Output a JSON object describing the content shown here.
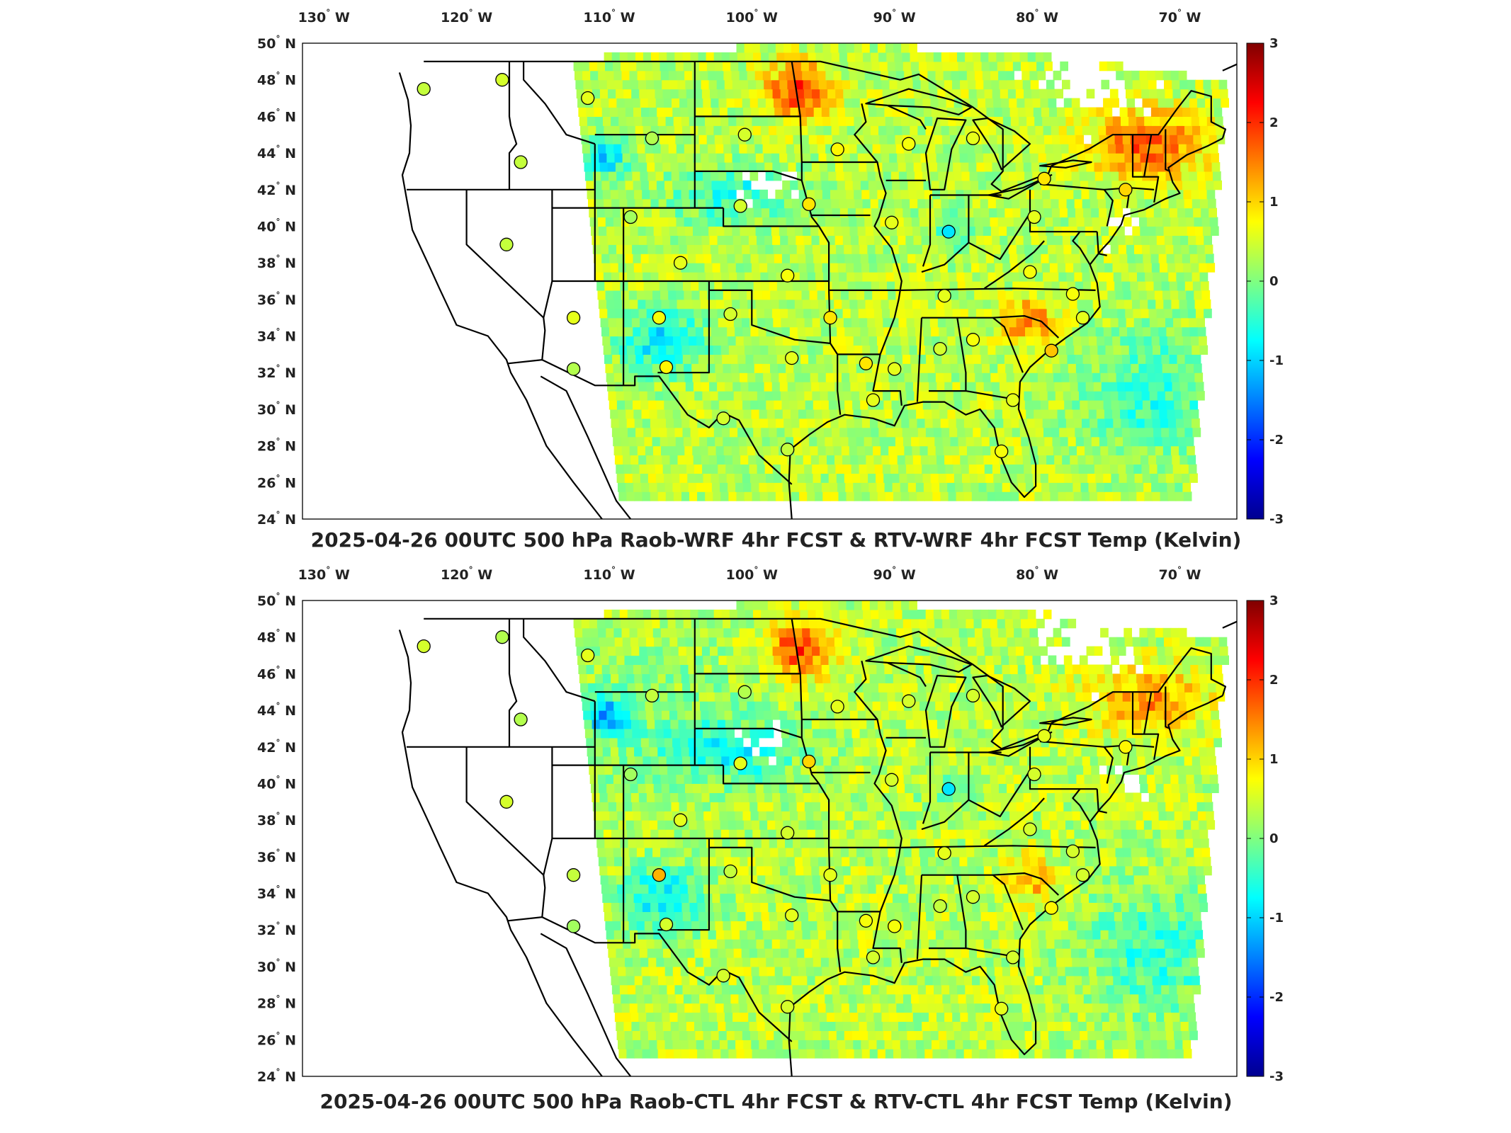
{
  "map_data": {
    "lon_ticks": [
      {
        "value": -130,
        "num": "130",
        "hem": "W"
      },
      {
        "value": -120,
        "num": "120",
        "hem": "W"
      },
      {
        "value": -110,
        "num": "110",
        "hem": "W"
      },
      {
        "value": -100,
        "num": "100",
        "hem": "W"
      },
      {
        "value": -90,
        "num": "90",
        "hem": "W"
      },
      {
        "value": -80,
        "num": "80",
        "hem": "W"
      },
      {
        "value": -70,
        "num": "70",
        "hem": "W"
      }
    ],
    "lat_ticks": [
      {
        "value": 50,
        "num": "50",
        "hem": "N"
      },
      {
        "value": 48,
        "num": "48",
        "hem": "N"
      },
      {
        "value": 46,
        "num": "46",
        "hem": "N"
      },
      {
        "value": 44,
        "num": "44",
        "hem": "N"
      },
      {
        "value": 42,
        "num": "42",
        "hem": "N"
      },
      {
        "value": 40,
        "num": "40",
        "hem": "N"
      },
      {
        "value": 38,
        "num": "38",
        "hem": "N"
      },
      {
        "value": 36,
        "num": "36",
        "hem": "N"
      },
      {
        "value": 34,
        "num": "34",
        "hem": "N"
      },
      {
        "value": 32,
        "num": "32",
        "hem": "N"
      },
      {
        "value": 30,
        "num": "30",
        "hem": "N"
      },
      {
        "value": 28,
        "num": "28",
        "hem": "N"
      },
      {
        "value": 26,
        "num": "26",
        "hem": "N"
      },
      {
        "value": 24,
        "num": "24",
        "hem": "N"
      }
    ],
    "lon_range": [
      -131.5,
      -66
    ],
    "lat_range": [
      24,
      50
    ],
    "colorbar": {
      "min": -3,
      "max": 3,
      "ticks": [
        "3",
        "2",
        "1",
        "0",
        "-1",
        "-2",
        "-3"
      ],
      "colormap": "jet",
      "colors": [
        "#00008f",
        "#0000ff",
        "#0080ff",
        "#00ffff",
        "#80ff80",
        "#ffff00",
        "#ff8000",
        "#ff0000",
        "#800000"
      ]
    },
    "stations": [
      {
        "lon": -123.0,
        "lat": 47.5,
        "v1": 0.4,
        "v2": 0.5
      },
      {
        "lon": -117.5,
        "lat": 48.0,
        "v1": 0.5,
        "v2": 0.3
      },
      {
        "lon": -111.5,
        "lat": 47.0,
        "v1": 0.6,
        "v2": 0.6
      },
      {
        "lon": -107.0,
        "lat": 44.8,
        "v1": 0.3,
        "v2": 0.4
      },
      {
        "lon": -100.5,
        "lat": 45.0,
        "v1": 0.5,
        "v2": 0.3
      },
      {
        "lon": -94.0,
        "lat": 44.2,
        "v1": 0.8,
        "v2": 0.6
      },
      {
        "lon": -89.0,
        "lat": 44.5,
        "v1": 0.7,
        "v2": 0.5
      },
      {
        "lon": -84.5,
        "lat": 44.8,
        "v1": 0.6,
        "v2": 0.5
      },
      {
        "lon": -79.5,
        "lat": 42.6,
        "v1": 0.9,
        "v2": 0.6
      },
      {
        "lon": -73.8,
        "lat": 42.0,
        "v1": 1.0,
        "v2": 0.8
      },
      {
        "lon": -116.2,
        "lat": 43.5,
        "v1": 0.4,
        "v2": 0.3
      },
      {
        "lon": -108.5,
        "lat": 40.5,
        "v1": 0.2,
        "v2": 0.2
      },
      {
        "lon": -100.8,
        "lat": 41.1,
        "v1": 0.5,
        "v2": 0.6
      },
      {
        "lon": -96.0,
        "lat": 41.2,
        "v1": 0.9,
        "v2": 1.0
      },
      {
        "lon": -90.2,
        "lat": 40.2,
        "v1": 0.6,
        "v2": 0.5
      },
      {
        "lon": -86.2,
        "lat": 39.7,
        "v1": -0.9,
        "v2": -0.9
      },
      {
        "lon": -80.2,
        "lat": 40.5,
        "v1": 0.6,
        "v2": 0.5
      },
      {
        "lon": -117.2,
        "lat": 39.0,
        "v1": 0.4,
        "v2": 0.5
      },
      {
        "lon": -105.0,
        "lat": 38.0,
        "v1": 0.6,
        "v2": 0.6
      },
      {
        "lon": -97.5,
        "lat": 37.3,
        "v1": 0.7,
        "v2": 0.5
      },
      {
        "lon": -86.5,
        "lat": 36.2,
        "v1": 0.6,
        "v2": 0.6
      },
      {
        "lon": -80.5,
        "lat": 37.5,
        "v1": 0.7,
        "v2": 0.5
      },
      {
        "lon": -77.5,
        "lat": 36.3,
        "v1": 0.7,
        "v2": 0.5
      },
      {
        "lon": -112.5,
        "lat": 35.0,
        "v1": 0.6,
        "v2": 0.4
      },
      {
        "lon": -106.5,
        "lat": 35.0,
        "v1": 0.7,
        "v2": 1.2
      },
      {
        "lon": -101.5,
        "lat": 35.2,
        "v1": 0.5,
        "v2": 0.4
      },
      {
        "lon": -94.5,
        "lat": 35.0,
        "v1": 0.9,
        "v2": 0.6
      },
      {
        "lon": -86.8,
        "lat": 33.3,
        "v1": 0.5,
        "v2": 0.4
      },
      {
        "lon": -84.5,
        "lat": 33.8,
        "v1": 0.7,
        "v2": 0.5
      },
      {
        "lon": -79.0,
        "lat": 33.2,
        "v1": 1.1,
        "v2": 0.8
      },
      {
        "lon": -76.8,
        "lat": 35.0,
        "v1": 0.6,
        "v2": 0.5
      },
      {
        "lon": -112.5,
        "lat": 32.2,
        "v1": 0.3,
        "v2": 0.2
      },
      {
        "lon": -106.0,
        "lat": 32.3,
        "v1": 0.8,
        "v2": 0.5
      },
      {
        "lon": -97.2,
        "lat": 32.8,
        "v1": 0.6,
        "v2": 0.6
      },
      {
        "lon": -92.0,
        "lat": 32.5,
        "v1": 0.9,
        "v2": 0.7
      },
      {
        "lon": -90.0,
        "lat": 32.2,
        "v1": 0.6,
        "v2": 0.7
      },
      {
        "lon": -91.5,
        "lat": 30.5,
        "v1": 0.6,
        "v2": 0.5
      },
      {
        "lon": -81.7,
        "lat": 30.5,
        "v1": 0.6,
        "v2": 0.5
      },
      {
        "lon": -102.0,
        "lat": 29.5,
        "v1": 0.5,
        "v2": 0.5
      },
      {
        "lon": -97.5,
        "lat": 27.8,
        "v1": 0.4,
        "v2": 0.5
      },
      {
        "lon": -82.5,
        "lat": 27.7,
        "v1": 0.7,
        "v2": 0.6
      }
    ]
  },
  "panels": [
    {
      "title": "2025-04-26 00UTC 500 hPa Raob-WRF 4hr FCST & RTV-WRF 4hr FCST Temp (Kelvin)"
    },
    {
      "title": "2025-04-26 00UTC 500 hPa Raob-CTL 4hr FCST & RTV-CTL 4hr FCST Temp (Kelvin)"
    }
  ]
}
